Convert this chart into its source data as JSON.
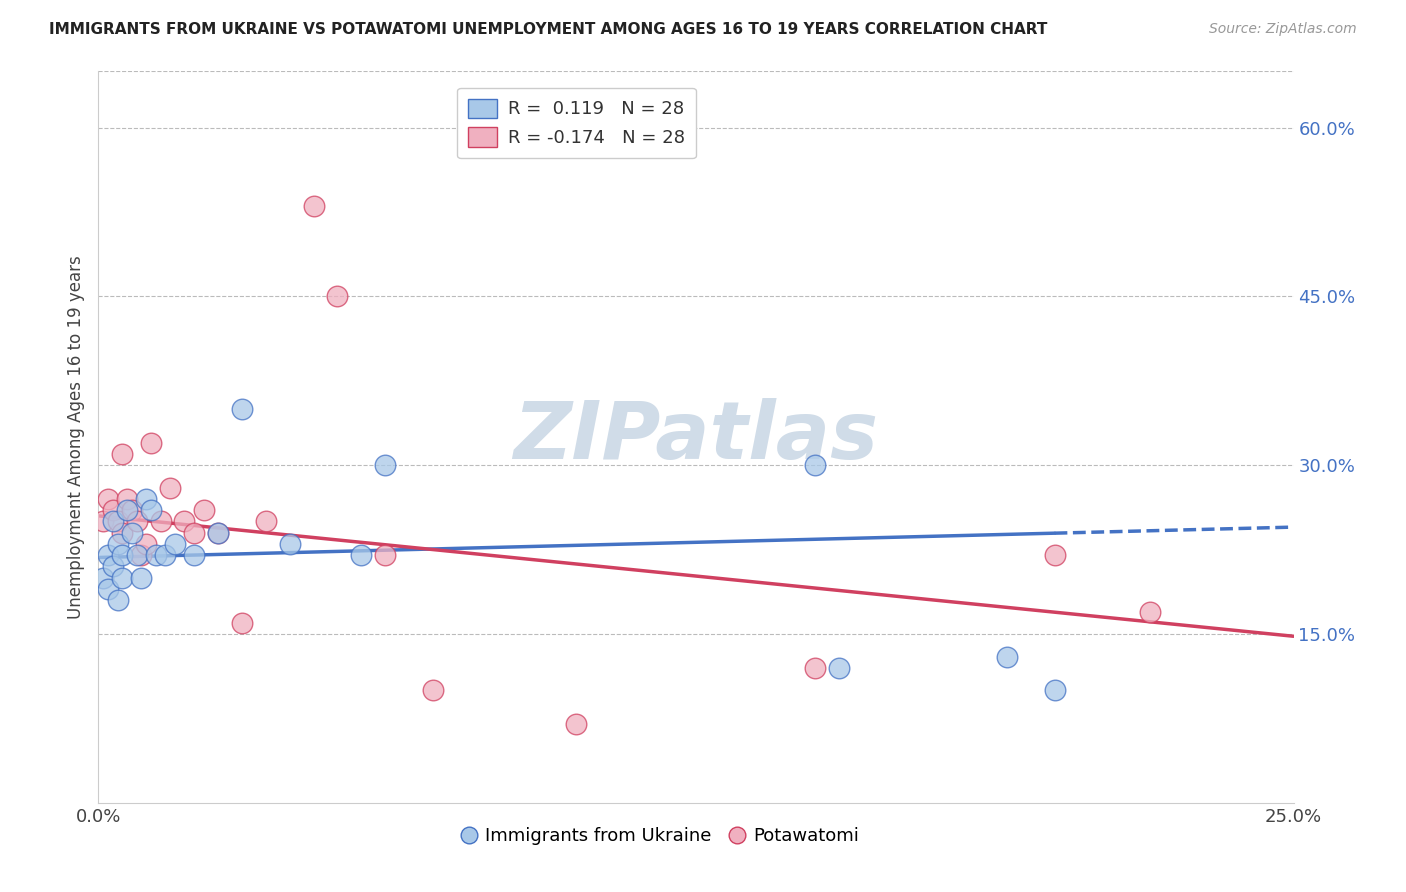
{
  "title": "IMMIGRANTS FROM UKRAINE VS POTAWATOMI UNEMPLOYMENT AMONG AGES 16 TO 19 YEARS CORRELATION CHART",
  "source": "Source: ZipAtlas.com",
  "ylabel": "Unemployment Among Ages 16 to 19 years",
  "xlim": [
    0.0,
    0.25
  ],
  "ylim": [
    0.0,
    0.65
  ],
  "xtick_positions": [
    0.0,
    0.05,
    0.1,
    0.15,
    0.2,
    0.25
  ],
  "xticklabels": [
    "0.0%",
    "",
    "",
    "",
    "",
    "25.0%"
  ],
  "right_ytick_positions": [
    0.15,
    0.3,
    0.45,
    0.6
  ],
  "right_yticklabels": [
    "15.0%",
    "30.0%",
    "45.0%",
    "60.0%"
  ],
  "grid_yticks": [
    0.15,
    0.3,
    0.45,
    0.6
  ],
  "legend_r1": "R =  0.119   N = 28",
  "legend_r2": "R = -0.174   N = 28",
  "blue_fill": "#a8c8e8",
  "blue_edge": "#4472c4",
  "pink_fill": "#f0b0c0",
  "pink_edge": "#d04060",
  "blue_line_color": "#4472c4",
  "pink_line_color": "#d04060",
  "watermark_color": "#d0dce8",
  "blue_x": [
    0.001,
    0.002,
    0.002,
    0.003,
    0.003,
    0.004,
    0.004,
    0.005,
    0.005,
    0.006,
    0.007,
    0.008,
    0.009,
    0.01,
    0.011,
    0.012,
    0.014,
    0.016,
    0.02,
    0.025,
    0.03,
    0.04,
    0.055,
    0.06,
    0.15,
    0.155,
    0.19,
    0.2
  ],
  "blue_y": [
    0.2,
    0.22,
    0.19,
    0.25,
    0.21,
    0.23,
    0.18,
    0.22,
    0.2,
    0.26,
    0.24,
    0.22,
    0.2,
    0.27,
    0.26,
    0.22,
    0.22,
    0.23,
    0.22,
    0.24,
    0.35,
    0.23,
    0.22,
    0.3,
    0.3,
    0.12,
    0.13,
    0.1
  ],
  "pink_x": [
    0.001,
    0.002,
    0.003,
    0.004,
    0.005,
    0.005,
    0.006,
    0.007,
    0.008,
    0.009,
    0.01,
    0.011,
    0.013,
    0.015,
    0.018,
    0.02,
    0.022,
    0.025,
    0.03,
    0.035,
    0.045,
    0.05,
    0.06,
    0.07,
    0.1,
    0.15,
    0.2,
    0.22
  ],
  "pink_y": [
    0.25,
    0.27,
    0.26,
    0.25,
    0.31,
    0.24,
    0.27,
    0.26,
    0.25,
    0.22,
    0.23,
    0.32,
    0.25,
    0.28,
    0.25,
    0.24,
    0.26,
    0.24,
    0.16,
    0.25,
    0.53,
    0.45,
    0.22,
    0.1,
    0.07,
    0.12,
    0.22,
    0.17
  ],
  "blue_line_x0": 0.0,
  "blue_line_x_solid_end": 0.2,
  "blue_line_x1": 0.25,
  "blue_line_y0": 0.218,
  "blue_line_y1": 0.245,
  "pink_line_x0": 0.0,
  "pink_line_x1": 0.25,
  "pink_line_y0": 0.255,
  "pink_line_y1": 0.148
}
